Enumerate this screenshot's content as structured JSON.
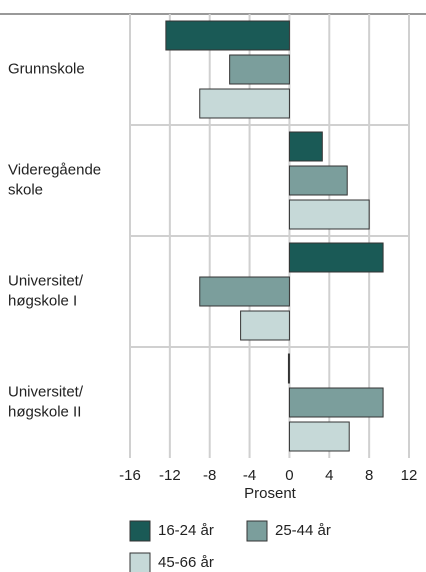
{
  "chart_data": {
    "type": "hbar",
    "xlabel": "Prosent",
    "categories": [
      "Grunnskole",
      "Videregående\nskole",
      "Universitet/\nhøgskole I",
      "Universitet/\nhøgskole II"
    ],
    "series": [
      {
        "name": "16-24 år",
        "color": "#1a5a56",
        "values": [
          -12.4,
          3.3,
          9.4,
          -0.1
        ]
      },
      {
        "name": "25-44 år",
        "color": "#7b9e9c",
        "values": [
          -6,
          5.8,
          -9,
          9.4
        ]
      },
      {
        "name": "45-66 år",
        "color": "#c6d9d8",
        "values": [
          -9,
          8,
          -4.9,
          6
        ]
      }
    ],
    "xlim": [
      -16,
      12
    ],
    "xticks": [
      -16,
      -12,
      -8,
      -4,
      0,
      4,
      8,
      12
    ],
    "grid": true
  }
}
